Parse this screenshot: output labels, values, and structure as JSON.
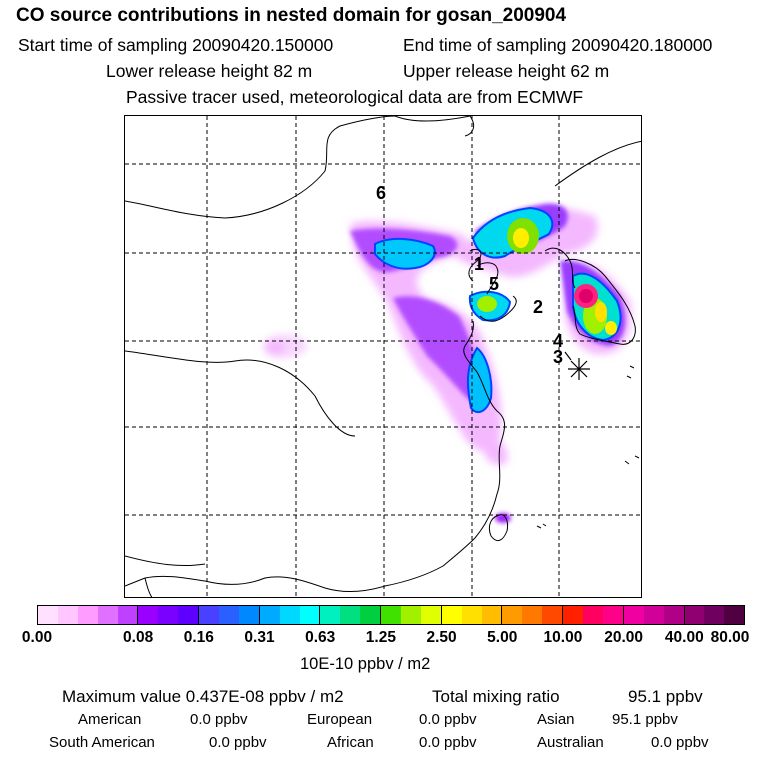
{
  "header": {
    "title": "CO  source contributions in nested domain for gosan_200904",
    "start_time": "Start time of sampling 20090420.150000",
    "end_time": "End time of sampling 20090420.180000",
    "lower_height": "Lower release height   82 m",
    "upper_height": "Upper release height   62 m",
    "tracer_note": "Passive tracer used, meteorological data are from ECMWF"
  },
  "map": {
    "region_labels": [
      "6",
      "1",
      "5",
      "2",
      "4",
      "3"
    ],
    "receptor_symbol": "star-icon"
  },
  "colorbar": {
    "ticks": [
      "0.00",
      "0.08",
      "0.16",
      "0.31",
      "0.63",
      "1.25",
      "2.50",
      "5.00",
      "10.00",
      "20.00",
      "40.00",
      "80.00"
    ],
    "colors": [
      "#ffe0ff",
      "#ffc6ff",
      "#ff9cff",
      "#e070ff",
      "#c040ff",
      "#9a00ff",
      "#7a00ff",
      "#5e00ff",
      "#4a40ff",
      "#2a60ff",
      "#0088ff",
      "#00aaff",
      "#00d8ff",
      "#00ffff",
      "#00f0c0",
      "#00e080",
      "#00d040",
      "#40e000",
      "#a0f000",
      "#e0ff00",
      "#ffff00",
      "#ffe000",
      "#ffbc00",
      "#ff9a00",
      "#ff7800",
      "#ff4800",
      "#ff2000",
      "#ff0060",
      "#ff0088",
      "#f000a0",
      "#d00098",
      "#b00088",
      "#900070",
      "#700060",
      "#500040"
    ],
    "unit": "10E-10 ppbv / m2"
  },
  "stats": {
    "max_value": "Maximum value  0.437E-08 ppbv / m2",
    "total": "Total mixing ratio",
    "total_value": "95.1 ppbv"
  },
  "sources": [
    {
      "name": "American",
      "value": "0.0 ppbv"
    },
    {
      "name": "European",
      "value": "0.0 ppbv"
    },
    {
      "name": "Asian",
      "value": "95.1 ppbv"
    },
    {
      "name": "South American",
      "value": "0.0 ppbv"
    },
    {
      "name": "African",
      "value": "0.0 ppbv"
    },
    {
      "name": "Australian",
      "value": "0.0 ppbv"
    }
  ]
}
